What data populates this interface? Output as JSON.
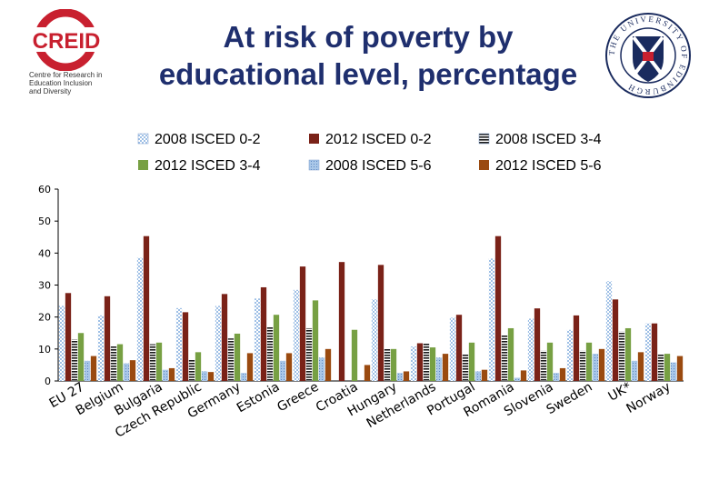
{
  "slide": {
    "title_line1": "At risk of poverty by",
    "title_line2": "educational level, percentage"
  },
  "logos": {
    "left_name": "CREID",
    "left_caption": [
      "Centre for Research in",
      "Education Inclusion",
      "and Diversity"
    ],
    "right_ring": "THE UNIVERSITY OF EDINBURGH",
    "left_color": "#c8202f",
    "right_color": "#1a2b5e"
  },
  "chart_data": {
    "type": "bar",
    "title": "At risk of poverty by educational level, percentage",
    "xlabel": "",
    "ylabel": "",
    "ylim": [
      0,
      60
    ],
    "yticks": [
      0,
      10,
      20,
      30,
      40,
      50,
      60
    ],
    "grid": false,
    "legend_position": "top",
    "categories": [
      "EU 27",
      "Belgium",
      "Bulgaria",
      "Czech Republic",
      "Germany",
      "Estonia",
      "Greece",
      "Croatia",
      "Hungary",
      "Netherlands",
      "Portugal",
      "Romania",
      "Slovenia",
      "Sweden",
      "UK*",
      "Norway"
    ],
    "series": [
      {
        "name": "2008 ISCED 0-2",
        "color": "#a9c7e8",
        "pattern": "dots",
        "values": [
          23.5,
          20.5,
          38.5,
          22.8,
          23.5,
          25.8,
          28.5,
          0,
          25.5,
          10.8,
          19.8,
          38.3,
          19.5,
          16.0,
          31.2,
          18.0
        ]
      },
      {
        "name": "2012 ISCED 0-2",
        "color": "#7a2218",
        "pattern": "solid",
        "values": [
          27.5,
          26.5,
          45.3,
          21.5,
          27.2,
          29.3,
          35.8,
          37.2,
          36.3,
          11.8,
          20.7,
          45.3,
          22.7,
          20.5,
          25.5,
          18.0
        ]
      },
      {
        "name": "2008 ISCED 3-4",
        "color": "#1a1a1a",
        "pattern": "hlines",
        "values": [
          13.0,
          10.8,
          11.5,
          6.8,
          13.3,
          17.0,
          16.5,
          0,
          10.0,
          11.8,
          8.3,
          14.3,
          9.5,
          9.5,
          15.5,
          8.5
        ]
      },
      {
        "name": "2012 ISCED 3-4",
        "color": "#77a043",
        "pattern": "solid",
        "values": [
          15.0,
          11.5,
          12.0,
          9.0,
          14.8,
          20.7,
          25.2,
          16.0,
          10.0,
          10.5,
          12.0,
          16.5,
          12.0,
          12.0,
          16.5,
          8.5
        ]
      },
      {
        "name": "2008 ISCED 5-6",
        "color": "#a9c7e8",
        "pattern": "grid",
        "values": [
          6.3,
          5.5,
          3.5,
          3.0,
          2.5,
          6.3,
          7.3,
          0,
          2.5,
          7.3,
          3.0,
          1.0,
          2.5,
          8.5,
          6.3,
          5.8
        ]
      },
      {
        "name": "2012 ISCED 5-6",
        "color": "#9a4a10",
        "pattern": "solid",
        "values": [
          7.8,
          6.5,
          4.0,
          2.8,
          8.7,
          8.7,
          10.0,
          5.0,
          3.0,
          8.5,
          3.5,
          3.3,
          4.0,
          10.0,
          9.0,
          7.8
        ]
      }
    ]
  }
}
